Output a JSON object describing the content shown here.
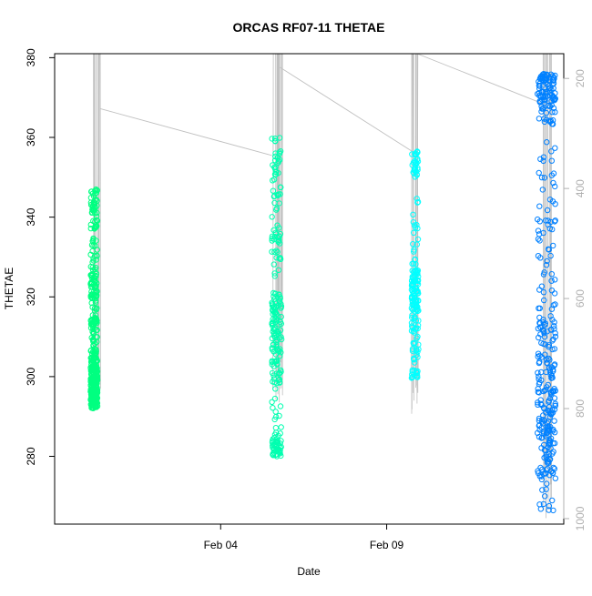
{
  "chart_data": {
    "type": "scatter",
    "title": "ORCAS RF07-11 THETAE",
    "xlabel": "Date",
    "ylabel": "THETAE",
    "y2label": "",
    "x_range": [
      "2016-01-30T00:00",
      "2016-02-14T08:00"
    ],
    "ylim": [
      263,
      381
    ],
    "y_ticks": [
      280,
      300,
      320,
      340,
      360,
      380
    ],
    "y_tick_labels": [
      "280",
      "300",
      "320",
      "340",
      "360",
      "380"
    ],
    "x_ticks": [
      "2016-02-04",
      "2016-02-09"
    ],
    "x_tick_labels": [
      "Feb 04",
      "Feb 09"
    ],
    "y2_range": [
      1010,
      155
    ],
    "y2_ticks": [
      200,
      400,
      600,
      800,
      1000
    ],
    "y2_tick_labels": [
      "200",
      "400",
      "600",
      "800",
      "1000"
    ],
    "grid": false,
    "legend": "none",
    "colors": {
      "rf07": "#00ff80",
      "rf08": "#00ffb0",
      "rf09": "#00ffff",
      "rf10_11": "#0080ff",
      "pressure_line": "#c0c0c0",
      "axis": "#000000",
      "secondary_axis": "#b0b0b0"
    },
    "series": [
      {
        "color": "#00ff80",
        "time_window": [
          "2016-01-31T02:00",
          "2016-01-31T07:00"
        ],
        "y_clusters": [
          [
            292,
            305,
            160
          ],
          [
            292,
            300,
            60
          ],
          [
            304,
            315,
            40
          ],
          [
            313,
            327,
            60
          ],
          [
            321,
            335,
            40
          ],
          [
            337,
            347,
            50
          ],
          [
            300,
            310,
            20
          ]
        ]
      },
      {
        "color": "#00ffb0",
        "time_window": [
          "2016-02-05T13:00",
          "2016-02-05T20:00"
        ],
        "y_clusters": [
          [
            280,
            284,
            40
          ],
          [
            283,
            300,
            30
          ],
          [
            300,
            321,
            60
          ],
          [
            305,
            321,
            40
          ],
          [
            325,
            338,
            30
          ],
          [
            340,
            360,
            40
          ]
        ]
      },
      {
        "color": "#00ffff",
        "time_window": [
          "2016-02-09T18:00",
          "2016-02-09T23:00"
        ],
        "y_clusters": [
          [
            299,
            305,
            20
          ],
          [
            305,
            316,
            30
          ],
          [
            316,
            327,
            80
          ],
          [
            328,
            345,
            20
          ],
          [
            350,
            357,
            30
          ]
        ]
      },
      {
        "color": "#0080ff",
        "time_window": [
          "2016-02-13T13:00",
          "2016-02-14T02:00"
        ],
        "y_clusters": [
          [
            266,
            285,
            30
          ],
          [
            275,
            285,
            30
          ],
          [
            285,
            300,
            80
          ],
          [
            300,
            315,
            60
          ],
          [
            315,
            340,
            40
          ],
          [
            340,
            360,
            20
          ],
          [
            363,
            376,
            70
          ],
          [
            367,
            376,
            30
          ]
        ]
      }
    ],
    "pressure_trace": {
      "color": "#c0c0c0",
      "legs": [
        {
          "time": [
            "2016-01-31T03:00",
            "2016-01-31T09:00"
          ],
          "p_top": 155,
          "p_bottom": 820
        },
        {
          "time": [
            "2016-02-05T14:00",
            "2016-02-05T21:00"
          ],
          "p_top": 155,
          "p_bottom": 800
        },
        {
          "time": [
            "2016-02-09T18:00",
            "2016-02-09T23:00"
          ],
          "p_top": 155,
          "p_bottom": 840
        },
        {
          "time": [
            "2016-02-13T16:00",
            "2016-02-14T01:00"
          ],
          "p_top": 155,
          "p_bottom": 1000
        }
      ],
      "transits": [
        {
          "time": [
            "2016-01-31T09:00",
            "2016-02-05T13:00"
          ],
          "p": [
            255,
            340
          ]
        },
        {
          "time": [
            "2016-02-05T19:00",
            "2016-02-09T20:00"
          ],
          "p": [
            180,
            335
          ]
        },
        {
          "time": [
            "2016-02-09T22:00",
            "2016-02-13T16:00"
          ],
          "p": [
            130,
            245
          ]
        }
      ]
    }
  }
}
